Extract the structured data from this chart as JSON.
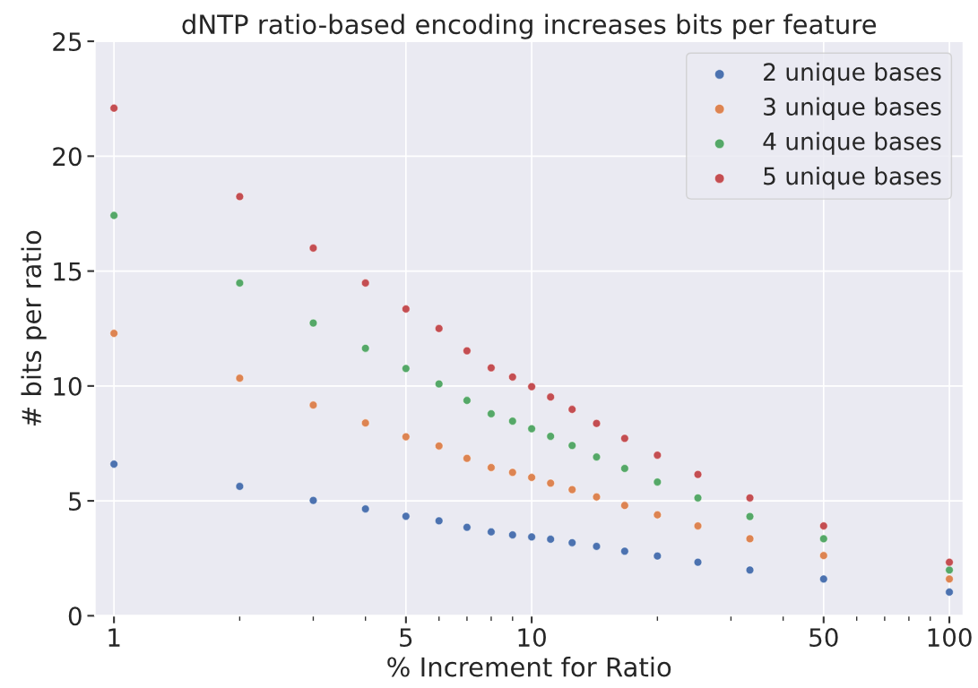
{
  "chart_data": {
    "type": "scatter",
    "title": "dNTP ratio-based encoding increases bits per feature",
    "xlabel": "% Increment for Ratio",
    "ylabel": "# bits per ratio",
    "x": [
      1,
      2,
      3,
      4,
      5,
      6,
      7,
      8,
      9,
      10,
      11.1,
      12.5,
      14.3,
      16.7,
      20,
      25,
      33.3,
      50,
      100
    ],
    "series": [
      {
        "name": "2 unique bases",
        "color": "#4c72b0",
        "values": [
          6.6,
          5.63,
          5.02,
          4.65,
          4.33,
          4.13,
          3.85,
          3.65,
          3.52,
          3.43,
          3.33,
          3.18,
          3.02,
          2.81,
          2.6,
          2.33,
          1.99,
          1.6,
          1.03
        ]
      },
      {
        "name": "3 unique bases",
        "color": "#dd8452",
        "values": [
          12.29,
          10.34,
          9.17,
          8.39,
          7.79,
          7.39,
          6.85,
          6.45,
          6.24,
          6.02,
          5.77,
          5.49,
          5.17,
          4.8,
          4.39,
          3.91,
          3.35,
          2.62,
          1.6
        ]
      },
      {
        "name": "4 unique bases",
        "color": "#55a868",
        "values": [
          17.42,
          14.48,
          12.74,
          11.64,
          10.76,
          10.09,
          9.37,
          8.79,
          8.47,
          8.14,
          7.81,
          7.41,
          6.91,
          6.41,
          5.82,
          5.13,
          4.32,
          3.35,
          1.99
        ]
      },
      {
        "name": "5 unique bases",
        "color": "#c44e52",
        "values": [
          22.09,
          18.24,
          16.0,
          14.48,
          13.35,
          12.5,
          11.53,
          10.79,
          10.39,
          9.97,
          9.52,
          8.98,
          8.37,
          7.72,
          6.99,
          6.15,
          5.13,
          3.91,
          2.33
        ]
      }
    ],
    "log": "x",
    "xlim": [
      0.9,
      108
    ],
    "ylim": [
      0,
      25
    ],
    "xticks": [
      1,
      {
        "value": 2,
        "label": null
      },
      {
        "value": 3,
        "label": null
      },
      {
        "value": 4,
        "label": null
      },
      5,
      {
        "value": 6,
        "label": null
      },
      {
        "value": 7,
        "label": null
      },
      {
        "value": 8,
        "label": null
      },
      {
        "value": 9,
        "label": null
      },
      10,
      {
        "value": 20,
        "label": null
      },
      {
        "value": 30,
        "label": null
      },
      {
        "value": 40,
        "label": null
      },
      50,
      {
        "value": 60,
        "label": null
      },
      {
        "value": 70,
        "label": null
      },
      {
        "value": 80,
        "label": null
      },
      {
        "value": 90,
        "label": null
      },
      100
    ],
    "yticks": [
      0,
      5,
      10,
      15,
      20,
      25
    ],
    "grid": true,
    "legend": "top right",
    "marker": "circle"
  }
}
